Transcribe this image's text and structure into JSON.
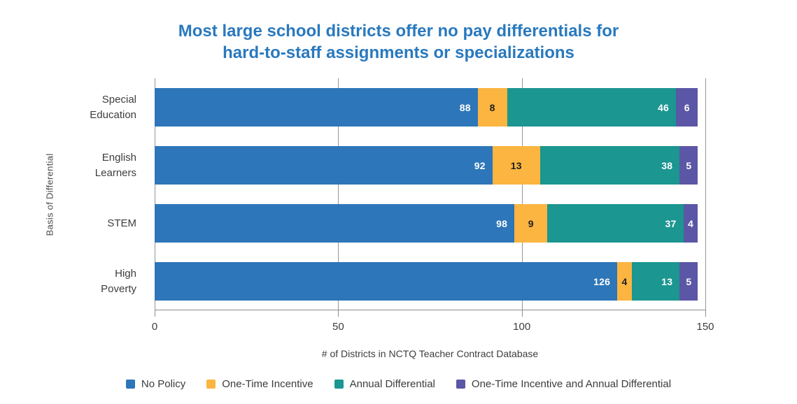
{
  "title": {
    "line1": "Most large school districts offer no pay differentials for",
    "line2": "hard-to-staff assignments or specializations",
    "color": "#2979BE"
  },
  "chart_data": {
    "type": "bar",
    "orientation": "horizontal",
    "stacked": true,
    "title": "Most large school districts offer no pay differentials for hard-to-staff assignments or specializations",
    "categories": [
      "Special Education",
      "English Learners",
      "STEM",
      "High Poverty"
    ],
    "category_label_lines": [
      [
        "Special",
        "Education"
      ],
      [
        "English",
        "Learners"
      ],
      [
        "STEM"
      ],
      [
        "High",
        "Poverty"
      ]
    ],
    "series": [
      {
        "name": "No Policy",
        "color": "#2D76B9",
        "values": [
          88,
          92,
          98,
          126
        ],
        "label_color": "#ffffff",
        "label_align": "right"
      },
      {
        "name": "One-Time Incentive",
        "color": "#FBB540",
        "values": [
          8,
          13,
          9,
          4
        ],
        "label_color": "#1f1f1f",
        "label_align": "center"
      },
      {
        "name": "Annual Differential",
        "color": "#1B9690",
        "values": [
          46,
          38,
          37,
          13
        ],
        "label_color": "#ffffff",
        "label_align": "right"
      },
      {
        "name": "One-Time Incentive and Annual Differential",
        "color": "#5B57A6",
        "values": [
          6,
          5,
          4,
          5
        ],
        "label_color": "#ffffff",
        "label_align": "center"
      }
    ],
    "xlabel": "# of Districts in NCTQ Teacher Contract Database",
    "ylabel": "Basis of Differential",
    "xlim": [
      0,
      150
    ],
    "xticks": [
      0,
      50,
      100,
      150
    ],
    "grid": true,
    "legend_position": "bottom",
    "axis_color": "#8c8c8c",
    "gridline_color": "#969696"
  }
}
